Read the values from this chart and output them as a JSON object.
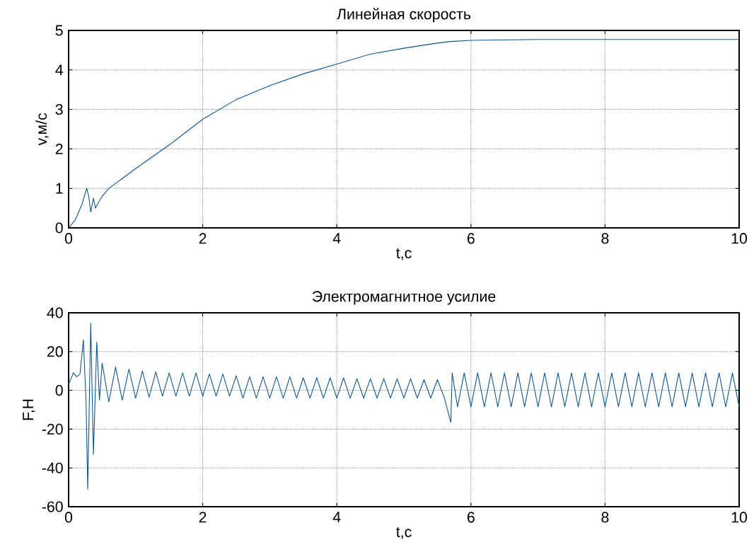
{
  "chart_data": [
    {
      "type": "line",
      "title": "Линейная скорость",
      "xlabel": "t,c",
      "ylabel": "v,м/с",
      "grid": true,
      "marker": "none",
      "line_style": "solid",
      "xlim": [
        0,
        10
      ],
      "ylim": [
        0,
        5
      ],
      "xticks": [
        0,
        2,
        4,
        6,
        8,
        10
      ],
      "yticks": [
        0,
        1,
        2,
        3,
        4,
        5
      ],
      "series": [
        {
          "color": "#0b5394",
          "x": [
            0,
            0.1,
            0.2,
            0.27,
            0.3,
            0.33,
            0.37,
            0.4,
            0.43,
            0.5,
            0.6,
            0.8,
            1,
            1.5,
            2,
            2.5,
            3,
            3.5,
            4,
            4.5,
            5,
            5.5,
            5.7,
            6,
            7,
            8,
            10
          ],
          "values": [
            0,
            0.2,
            0.6,
            1.0,
            0.8,
            0.4,
            0.75,
            0.5,
            0.6,
            0.8,
            1.0,
            1.25,
            1.5,
            2.1,
            2.75,
            3.25,
            3.6,
            3.9,
            4.15,
            4.4,
            4.55,
            4.68,
            4.72,
            4.75,
            4.77,
            4.77,
            4.77
          ]
        }
      ]
    },
    {
      "type": "line",
      "title": "Электромагнитное усилие",
      "xlabel": "t,c",
      "ylabel": "F,H",
      "grid": true,
      "marker": "none",
      "line_style": "solid",
      "xlim": [
        0,
        10
      ],
      "ylim": [
        -60,
        40
      ],
      "xticks": [
        0,
        2,
        4,
        6,
        8,
        10
      ],
      "yticks": [
        -60,
        -40,
        -20,
        0,
        20,
        40
      ],
      "series": [
        {
          "color": "#0b5394",
          "x": [
            0,
            0.07,
            0.12,
            0.17,
            0.22,
            0.26,
            0.285,
            0.33,
            0.37,
            0.42,
            0.46,
            0.5,
            0.6,
            0.7,
            0.8,
            0.9,
            1.0,
            1.1,
            1.2,
            1.3,
            1.4,
            1.5,
            1.6,
            1.7,
            1.8,
            1.9,
            2.0,
            2.1,
            2.2,
            2.3,
            2.4,
            2.5,
            2.6,
            2.7,
            2.8,
            2.9,
            3.0,
            3.1,
            3.2,
            3.3,
            3.4,
            3.5,
            3.6,
            3.7,
            3.8,
            3.9,
            4.0,
            4.1,
            4.2,
            4.3,
            4.4,
            4.5,
            4.6,
            4.7,
            4.8,
            4.9,
            5.0,
            5.1,
            5.2,
            5.3,
            5.4,
            5.5,
            5.6,
            5.7,
            5.72,
            5.8,
            5.9,
            6.0,
            6.1,
            6.2,
            6.3,
            6.4,
            6.5,
            6.6,
            6.7,
            6.8,
            6.9,
            7.0,
            7.1,
            7.2,
            7.3,
            7.4,
            7.5,
            7.6,
            7.7,
            7.8,
            7.9,
            8.0,
            8.1,
            8.2,
            8.3,
            8.4,
            8.5,
            8.6,
            8.7,
            8.8,
            8.9,
            9.0,
            9.1,
            9.2,
            9.3,
            9.4,
            9.5,
            9.6,
            9.7,
            9.8,
            9.9,
            10.0
          ],
          "values": [
            3,
            9,
            7,
            8.5,
            26,
            -5.5,
            -51,
            34.6,
            -33,
            25,
            -5,
            14,
            -6,
            12,
            -5,
            11,
            -4,
            10,
            -3.5,
            9.5,
            -3,
            9,
            -3,
            9,
            -3,
            9,
            -3,
            8.5,
            -3,
            8.5,
            -3,
            7.5,
            -4,
            7,
            -4,
            7,
            -4,
            7,
            -4,
            7,
            -4,
            6.5,
            -4,
            6.5,
            -4,
            6.5,
            -4,
            6.5,
            -4,
            6,
            -4,
            6,
            -4,
            6,
            -4,
            6,
            -4,
            6,
            -4,
            5.5,
            -4,
            5.5,
            -3.5,
            -16.5,
            9,
            -8.5,
            9,
            -8.5,
            9,
            -8.5,
            9,
            -8.5,
            9,
            -8.5,
            9,
            -8.5,
            9,
            -8.5,
            9,
            -8.5,
            9,
            -8.5,
            9,
            -8.5,
            9,
            -8.5,
            9,
            -8.5,
            9,
            -8.5,
            9,
            -8.5,
            9,
            -8.5,
            9,
            -8.5,
            9,
            -8.5,
            9,
            -8.5,
            9,
            -8.5,
            9,
            -8.5,
            9,
            -8.5,
            9,
            -8.5
          ]
        }
      ]
    }
  ]
}
